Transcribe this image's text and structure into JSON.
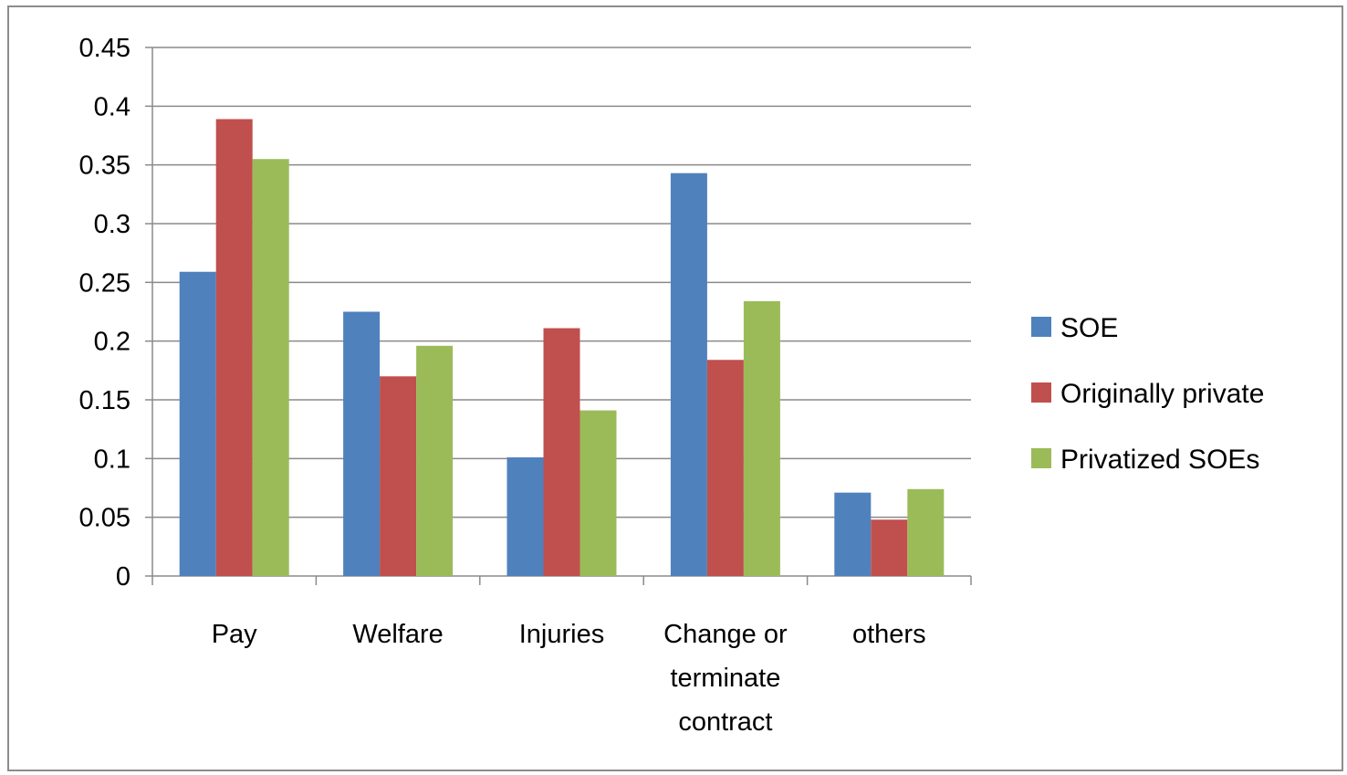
{
  "chart_data": {
    "type": "bar",
    "categories": [
      [
        "Pay"
      ],
      [
        "Welfare"
      ],
      [
        "Injuries"
      ],
      [
        "Change or",
        "terminate",
        "contract"
      ],
      [
        "others"
      ]
    ],
    "series": [
      {
        "name": "SOE",
        "color": "#4f81bd",
        "values": [
          0.259,
          0.225,
          0.101,
          0.343,
          0.071
        ]
      },
      {
        "name": "Originally private",
        "color": "#c0504d",
        "values": [
          0.389,
          0.17,
          0.211,
          0.184,
          0.048
        ]
      },
      {
        "name": "Privatized SOEs",
        "color": "#9bbb59",
        "values": [
          0.355,
          0.196,
          0.141,
          0.234,
          0.074
        ]
      }
    ],
    "y_ticks": [
      "0",
      "0.05",
      "0.1",
      "0.15",
      "0.2",
      "0.25",
      "0.3",
      "0.35",
      "0.4",
      "0.45"
    ],
    "ylim": [
      0,
      0.45
    ],
    "grid": true,
    "legend_position": "right"
  }
}
